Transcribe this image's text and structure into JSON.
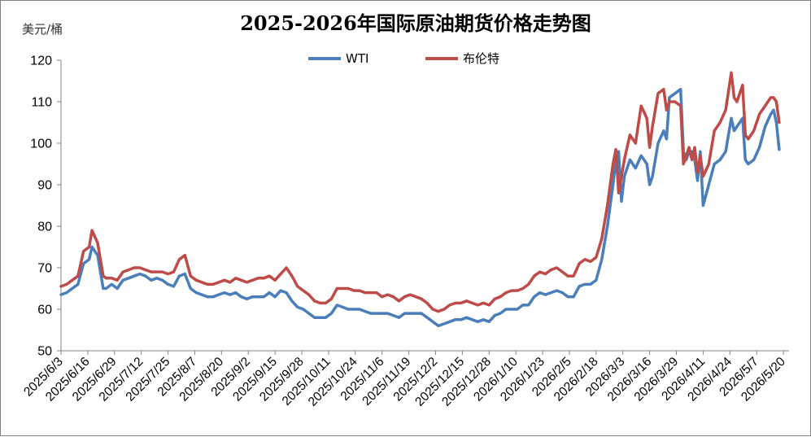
{
  "chart_data": {
    "type": "line",
    "title": "2025-2026年国际原油期货价格走势图",
    "unit_label": "美元/桶",
    "ylim": [
      50,
      120
    ],
    "y_ticks": [
      50,
      60,
      70,
      80,
      90,
      100,
      110,
      120
    ],
    "x_tick_labels": [
      "2025/6/3",
      "2025/6/16",
      "2025/6/29",
      "2025/7/12",
      "2025/7/25",
      "2025/8/7",
      "2025/8/20",
      "2025/9/2",
      "2025/9/15",
      "2025/9/28",
      "2025/10/11",
      "2025/10/24",
      "2025/11/6",
      "2025/11/19",
      "2025/12/2",
      "2025/12/15",
      "2025/12/28",
      "2026/1/10",
      "2026/1/23",
      "2026/2/5",
      "2026/2/18",
      "2026/3/3",
      "2026/3/16",
      "2026/3/29",
      "2026/4/11",
      "2026/4/24",
      "2026/5/7",
      "2026/5/20"
    ],
    "grid": false,
    "legend_position": "top-center",
    "series": [
      {
        "name": "WTI",
        "color": "#4a7ebb",
        "values": [
          [
            0,
            63.5
          ],
          [
            2,
            64
          ],
          [
            4,
            65
          ],
          [
            6,
            66
          ],
          [
            8,
            71
          ],
          [
            10,
            72
          ],
          [
            11,
            75
          ],
          [
            13,
            73
          ],
          [
            15,
            65
          ],
          [
            16,
            65
          ],
          [
            18,
            66
          ],
          [
            20,
            65
          ],
          [
            22,
            67
          ],
          [
            24,
            67.5
          ],
          [
            26,
            68
          ],
          [
            28,
            68.5
          ],
          [
            30,
            68
          ],
          [
            32,
            67
          ],
          [
            34,
            67.5
          ],
          [
            36,
            67
          ],
          [
            38,
            66
          ],
          [
            40,
            65.5
          ],
          [
            42,
            68
          ],
          [
            44,
            68.5
          ],
          [
            46,
            65
          ],
          [
            48,
            64
          ],
          [
            50,
            63.5
          ],
          [
            52,
            63
          ],
          [
            54,
            63
          ],
          [
            56,
            63.5
          ],
          [
            58,
            64
          ],
          [
            60,
            63.5
          ],
          [
            62,
            64
          ],
          [
            64,
            63
          ],
          [
            66,
            62.5
          ],
          [
            68,
            63
          ],
          [
            70,
            63
          ],
          [
            72,
            63
          ],
          [
            74,
            64
          ],
          [
            76,
            63
          ],
          [
            78,
            64.5
          ],
          [
            80,
            64
          ],
          [
            82,
            62
          ],
          [
            84,
            60.5
          ],
          [
            86,
            60
          ],
          [
            88,
            59
          ],
          [
            90,
            58
          ],
          [
            92,
            58
          ],
          [
            94,
            58
          ],
          [
            96,
            59
          ],
          [
            98,
            61
          ],
          [
            100,
            60.5
          ],
          [
            102,
            60
          ],
          [
            104,
            60
          ],
          [
            106,
            60
          ],
          [
            108,
            59.5
          ],
          [
            110,
            59
          ],
          [
            112,
            59
          ],
          [
            114,
            59
          ],
          [
            116,
            59
          ],
          [
            118,
            58.5
          ],
          [
            120,
            58
          ],
          [
            122,
            59
          ],
          [
            124,
            59
          ],
          [
            126,
            59
          ],
          [
            128,
            59
          ],
          [
            130,
            58
          ],
          [
            132,
            57
          ],
          [
            134,
            56
          ],
          [
            136,
            56.5
          ],
          [
            138,
            57
          ],
          [
            140,
            57.5
          ],
          [
            142,
            57.5
          ],
          [
            144,
            58
          ],
          [
            146,
            57.5
          ],
          [
            148,
            57
          ],
          [
            150,
            57.5
          ],
          [
            152,
            57
          ],
          [
            154,
            58.5
          ],
          [
            156,
            59
          ],
          [
            158,
            60
          ],
          [
            160,
            60
          ],
          [
            162,
            60
          ],
          [
            164,
            61
          ],
          [
            166,
            61
          ],
          [
            168,
            63
          ],
          [
            170,
            64
          ],
          [
            172,
            63.5
          ],
          [
            174,
            64
          ],
          [
            176,
            64.5
          ],
          [
            178,
            64
          ],
          [
            180,
            63
          ],
          [
            182,
            63
          ],
          [
            184,
            65.5
          ],
          [
            186,
            66
          ],
          [
            188,
            66
          ],
          [
            190,
            67
          ],
          [
            192,
            72
          ],
          [
            194,
            80
          ],
          [
            196,
            90
          ],
          [
            197,
            96
          ],
          [
            198,
            98
          ],
          [
            199,
            86
          ],
          [
            200,
            92
          ],
          [
            202,
            96
          ],
          [
            204,
            94
          ],
          [
            206,
            97
          ],
          [
            208,
            95
          ],
          [
            209,
            90
          ],
          [
            210,
            92
          ],
          [
            212,
            100
          ],
          [
            214,
            103
          ],
          [
            215,
            101
          ],
          [
            216,
            111
          ],
          [
            218,
            112
          ],
          [
            220,
            113
          ],
          [
            221,
            98
          ],
          [
            222,
            96
          ],
          [
            223,
            98
          ],
          [
            224,
            98
          ],
          [
            225,
            96
          ],
          [
            226,
            91
          ],
          [
            227,
            98
          ],
          [
            228,
            85
          ],
          [
            230,
            90
          ],
          [
            232,
            95
          ],
          [
            234,
            96
          ],
          [
            236,
            98
          ],
          [
            238,
            106
          ],
          [
            239,
            103
          ],
          [
            240,
            104
          ],
          [
            242,
            106
          ],
          [
            243,
            96
          ],
          [
            244,
            95
          ],
          [
            246,
            96
          ],
          [
            248,
            99
          ],
          [
            250,
            104
          ],
          [
            252,
            107
          ],
          [
            253,
            108
          ],
          [
            254,
            105
          ],
          [
            255,
            98.5
          ]
        ]
      },
      {
        "name": "布伦特",
        "color": "#be4b48",
        "values": [
          [
            0,
            65.5
          ],
          [
            2,
            66
          ],
          [
            4,
            67
          ],
          [
            6,
            68
          ],
          [
            8,
            74
          ],
          [
            10,
            75
          ],
          [
            11,
            79
          ],
          [
            13,
            76
          ],
          [
            15,
            68
          ],
          [
            16,
            67.5
          ],
          [
            18,
            67.5
          ],
          [
            20,
            67
          ],
          [
            22,
            69
          ],
          [
            24,
            69.5
          ],
          [
            26,
            70
          ],
          [
            28,
            70
          ],
          [
            30,
            69.5
          ],
          [
            32,
            69
          ],
          [
            34,
            69
          ],
          [
            36,
            69
          ],
          [
            38,
            68.5
          ],
          [
            40,
            69
          ],
          [
            42,
            72
          ],
          [
            44,
            73
          ],
          [
            46,
            68
          ],
          [
            48,
            67
          ],
          [
            50,
            66.5
          ],
          [
            52,
            66
          ],
          [
            54,
            66
          ],
          [
            56,
            66.5
          ],
          [
            58,
            67
          ],
          [
            60,
            66.5
          ],
          [
            62,
            67.5
          ],
          [
            64,
            67
          ],
          [
            66,
            66.5
          ],
          [
            68,
            67
          ],
          [
            70,
            67.5
          ],
          [
            72,
            67.5
          ],
          [
            74,
            68
          ],
          [
            76,
            67
          ],
          [
            78,
            68.5
          ],
          [
            80,
            70
          ],
          [
            82,
            68
          ],
          [
            84,
            65.5
          ],
          [
            86,
            64.5
          ],
          [
            88,
            63.5
          ],
          [
            90,
            62
          ],
          [
            92,
            61.5
          ],
          [
            94,
            61.5
          ],
          [
            96,
            62.5
          ],
          [
            98,
            65
          ],
          [
            100,
            65
          ],
          [
            102,
            65
          ],
          [
            104,
            64.5
          ],
          [
            106,
            64.5
          ],
          [
            108,
            64
          ],
          [
            110,
            64
          ],
          [
            112,
            64
          ],
          [
            114,
            63
          ],
          [
            116,
            63.5
          ],
          [
            118,
            63
          ],
          [
            120,
            62
          ],
          [
            122,
            63
          ],
          [
            124,
            63.5
          ],
          [
            126,
            63
          ],
          [
            128,
            62.5
          ],
          [
            130,
            61.5
          ],
          [
            132,
            60
          ],
          [
            134,
            59.5
          ],
          [
            136,
            60
          ],
          [
            138,
            61
          ],
          [
            140,
            61.5
          ],
          [
            142,
            61.5
          ],
          [
            144,
            62
          ],
          [
            146,
            61.5
          ],
          [
            148,
            61
          ],
          [
            150,
            61.5
          ],
          [
            152,
            61
          ],
          [
            154,
            62.5
          ],
          [
            156,
            63
          ],
          [
            158,
            64
          ],
          [
            160,
            64.5
          ],
          [
            162,
            64.5
          ],
          [
            164,
            65
          ],
          [
            166,
            66
          ],
          [
            168,
            68
          ],
          [
            170,
            69
          ],
          [
            172,
            68.5
          ],
          [
            174,
            69.5
          ],
          [
            176,
            70
          ],
          [
            178,
            69
          ],
          [
            180,
            68
          ],
          [
            182,
            68
          ],
          [
            184,
            71
          ],
          [
            186,
            72
          ],
          [
            188,
            71.5
          ],
          [
            190,
            72.5
          ],
          [
            192,
            77
          ],
          [
            194,
            85
          ],
          [
            196,
            95
          ],
          [
            197,
            98.5
          ],
          [
            198,
            88
          ],
          [
            200,
            96
          ],
          [
            202,
            102
          ],
          [
            204,
            100
          ],
          [
            206,
            109
          ],
          [
            208,
            106
          ],
          [
            209,
            99
          ],
          [
            210,
            104
          ],
          [
            212,
            112
          ],
          [
            214,
            113
          ],
          [
            215,
            108
          ],
          [
            216,
            110
          ],
          [
            218,
            110
          ],
          [
            220,
            109
          ],
          [
            221,
            95
          ],
          [
            222,
            97
          ],
          [
            223,
            99
          ],
          [
            224,
            96
          ],
          [
            225,
            99
          ],
          [
            226,
            93
          ],
          [
            227,
            97
          ],
          [
            228,
            92
          ],
          [
            230,
            95
          ],
          [
            232,
            103
          ],
          [
            234,
            105
          ],
          [
            236,
            108
          ],
          [
            238,
            117
          ],
          [
            239,
            111
          ],
          [
            240,
            110
          ],
          [
            242,
            114
          ],
          [
            243,
            102
          ],
          [
            244,
            101
          ],
          [
            246,
            103
          ],
          [
            248,
            107
          ],
          [
            250,
            109
          ],
          [
            252,
            111
          ],
          [
            253,
            111
          ],
          [
            254,
            110
          ],
          [
            255,
            105
          ]
        ]
      }
    ]
  }
}
